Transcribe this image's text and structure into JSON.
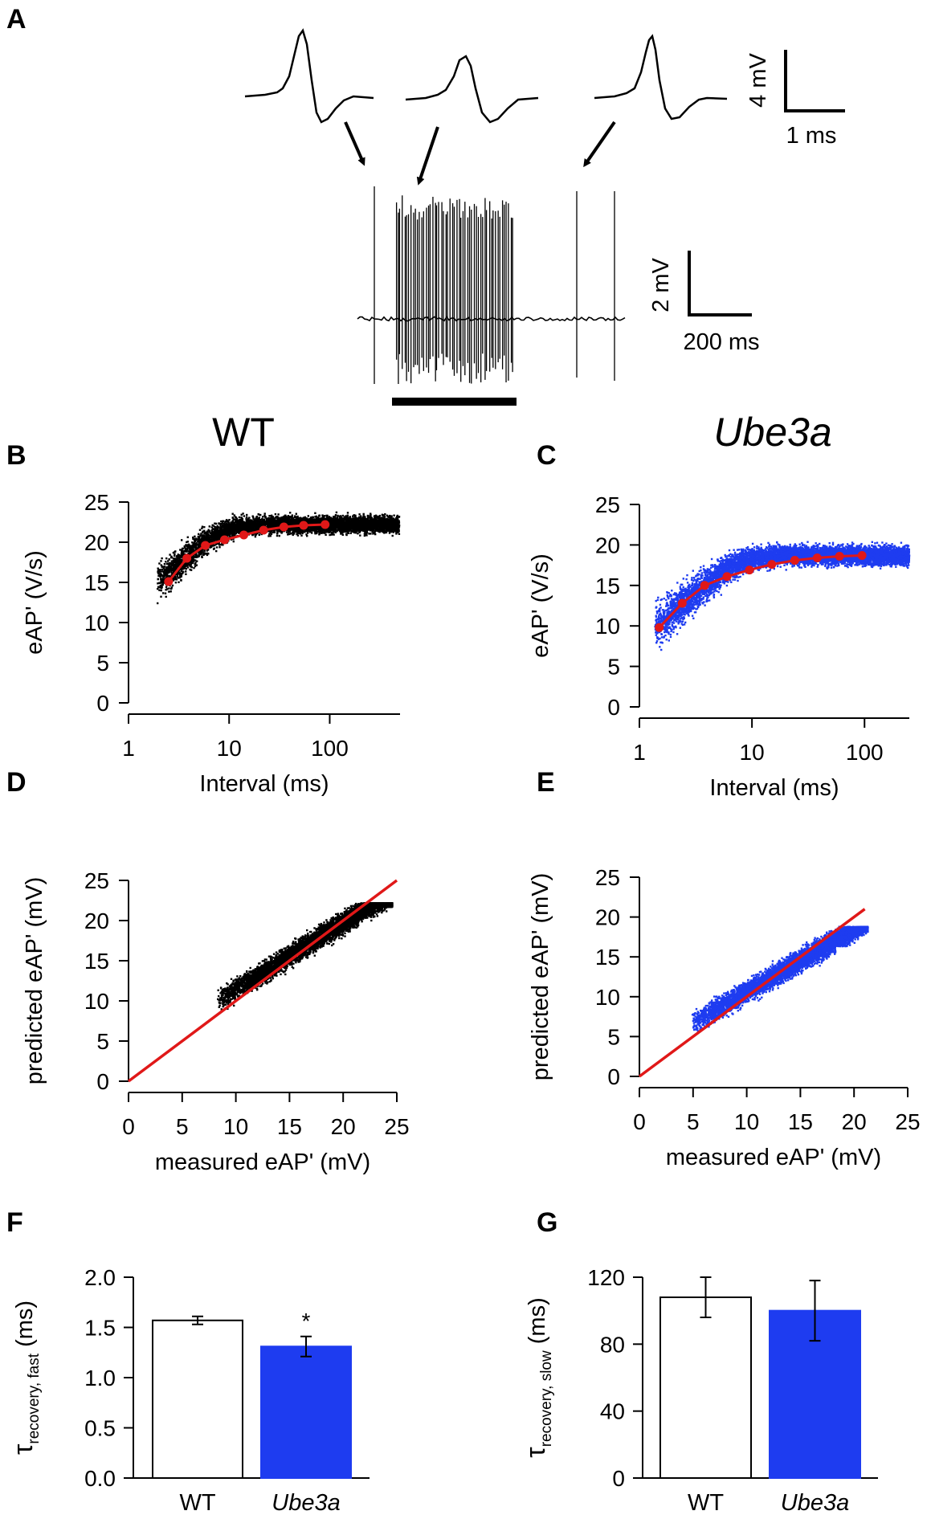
{
  "colors": {
    "wt": "#000000",
    "ube3a": "#1e3cf0",
    "fit": "#e01818",
    "bar_wt": "#ffffff"
  },
  "panel_a": {
    "label": "A",
    "scale_small": {
      "v": "4 mV",
      "t": "1 ms"
    },
    "scale_large": {
      "v": "2 mV",
      "t": "200 ms"
    }
  },
  "headers": {
    "wt": "WT",
    "ube3a": "Ube3a"
  },
  "panel_labels": {
    "b": "B",
    "c": "C",
    "d": "D",
    "e": "E",
    "f": "F",
    "g": "G"
  },
  "chart_data": [
    {
      "id": "B",
      "type": "scatter",
      "title": "WT",
      "xlabel": "Interval (ms)",
      "ylabel": "eAP' (V/s)",
      "xscale": "log",
      "xlim": [
        1,
        500
      ],
      "ylim": [
        0,
        25
      ],
      "xticks": [
        "1",
        "10",
        "100"
      ],
      "yticks": [
        "0",
        "5",
        "10",
        "15",
        "20",
        "25"
      ],
      "fit_x": [
        2.5,
        3.8,
        5.8,
        9,
        14,
        22,
        35,
        55,
        90
      ],
      "fit_y": [
        15.1,
        18.0,
        19.6,
        20.3,
        20.9,
        21.5,
        21.9,
        22.1,
        22.2
      ]
    },
    {
      "id": "C",
      "type": "scatter",
      "title": "Ube3a",
      "xlabel": "Interval (ms)",
      "ylabel": "eAP' (V/s)",
      "xscale": "log",
      "xlim": [
        1,
        250
      ],
      "ylim": [
        0,
        25
      ],
      "xticks": [
        "1",
        "10",
        "100"
      ],
      "yticks": [
        "0",
        "5",
        "10",
        "15",
        "20",
        "25"
      ],
      "fit_x": [
        1.5,
        2.4,
        3.8,
        6,
        9.5,
        15,
        24,
        38,
        60,
        95
      ],
      "fit_y": [
        9.8,
        12.8,
        15.0,
        16.1,
        16.9,
        17.6,
        18.1,
        18.4,
        18.6,
        18.7
      ]
    },
    {
      "id": "D",
      "type": "scatter",
      "title": "WT",
      "xlabel": "measured eAP' (mV)",
      "ylabel": "predicted eAP' (mV)",
      "xlim": [
        0,
        25
      ],
      "ylim": [
        0,
        25
      ],
      "xticks": [
        "0",
        "5",
        "10",
        "15",
        "20",
        "25"
      ],
      "yticks": [
        "0",
        "5",
        "10",
        "15",
        "20",
        "25"
      ],
      "unity_line": {
        "x": [
          0,
          25
        ],
        "y": [
          0,
          25
        ]
      }
    },
    {
      "id": "E",
      "type": "scatter",
      "title": "Ube3a",
      "xlabel": "measured eAP' (mV)",
      "ylabel": "predicted eAP' (mV)",
      "xlim": [
        0,
        25
      ],
      "ylim": [
        0,
        25
      ],
      "xticks": [
        "0",
        "5",
        "10",
        "15",
        "20",
        "25"
      ],
      "yticks": [
        "0",
        "5",
        "10",
        "15",
        "20",
        "25"
      ],
      "unity_line": {
        "x": [
          0,
          21
        ],
        "y": [
          0,
          21
        ]
      }
    },
    {
      "id": "F",
      "type": "bar",
      "ylabel_main": "τ",
      "ylabel_sub": "recovery, fast",
      "ylabel_unit": "(ms)",
      "categories": [
        "WT",
        "Ube3a"
      ],
      "values": [
        1.57,
        1.31
      ],
      "errors": [
        0.04,
        0.1
      ],
      "ylim": [
        0,
        2.0
      ],
      "yticks": [
        "0.0",
        "0.5",
        "1.0",
        "1.5",
        "2.0"
      ],
      "annotation": "*"
    },
    {
      "id": "G",
      "type": "bar",
      "ylabel_main": "τ",
      "ylabel_sub": "recovery, slow",
      "ylabel_unit": "(ms)",
      "categories": [
        "WT",
        "Ube3a"
      ],
      "values": [
        108,
        100
      ],
      "errors": [
        12,
        18
      ],
      "ylim": [
        0,
        120
      ],
      "yticks": [
        "0",
        "40",
        "80",
        "120"
      ]
    }
  ]
}
